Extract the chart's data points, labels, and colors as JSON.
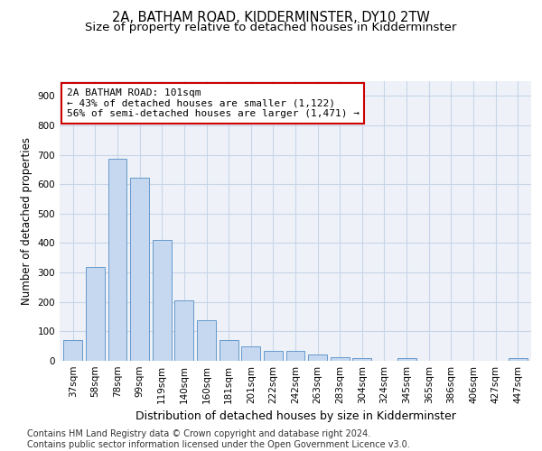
{
  "title": "2A, BATHAM ROAD, KIDDERMINSTER, DY10 2TW",
  "subtitle": "Size of property relative to detached houses in Kidderminster",
  "xlabel": "Distribution of detached houses by size in Kidderminster",
  "ylabel": "Number of detached properties",
  "categories": [
    "37sqm",
    "58sqm",
    "78sqm",
    "99sqm",
    "119sqm",
    "140sqm",
    "160sqm",
    "181sqm",
    "201sqm",
    "222sqm",
    "242sqm",
    "263sqm",
    "283sqm",
    "304sqm",
    "324sqm",
    "345sqm",
    "365sqm",
    "386sqm",
    "406sqm",
    "427sqm",
    "447sqm"
  ],
  "values": [
    72,
    320,
    685,
    622,
    410,
    205,
    137,
    70,
    48,
    35,
    35,
    22,
    11,
    8,
    1,
    10,
    1,
    0,
    0,
    0,
    8
  ],
  "bar_color": "#c5d8ef",
  "bar_edge_color": "#6699cc",
  "annotation_text": "2A BATHAM ROAD: 101sqm\n← 43% of detached houses are smaller (1,122)\n56% of semi-detached houses are larger (1,471) →",
  "annotation_box_facecolor": "#ffffff",
  "annotation_box_edgecolor": "#cc0000",
  "ylim": [
    0,
    950
  ],
  "yticks": [
    0,
    100,
    200,
    300,
    400,
    500,
    600,
    700,
    800,
    900
  ],
  "grid_color": "#c8d4e8",
  "background_color": "#eef2f8",
  "footer": "Contains HM Land Registry data © Crown copyright and database right 2024.\nContains public sector information licensed under the Open Government Licence v3.0.",
  "title_fontsize": 10.5,
  "subtitle_fontsize": 9.5,
  "footer_fontsize": 7,
  "xlabel_fontsize": 9,
  "ylabel_fontsize": 8.5,
  "tick_fontsize": 7.5,
  "annot_fontsize": 8
}
